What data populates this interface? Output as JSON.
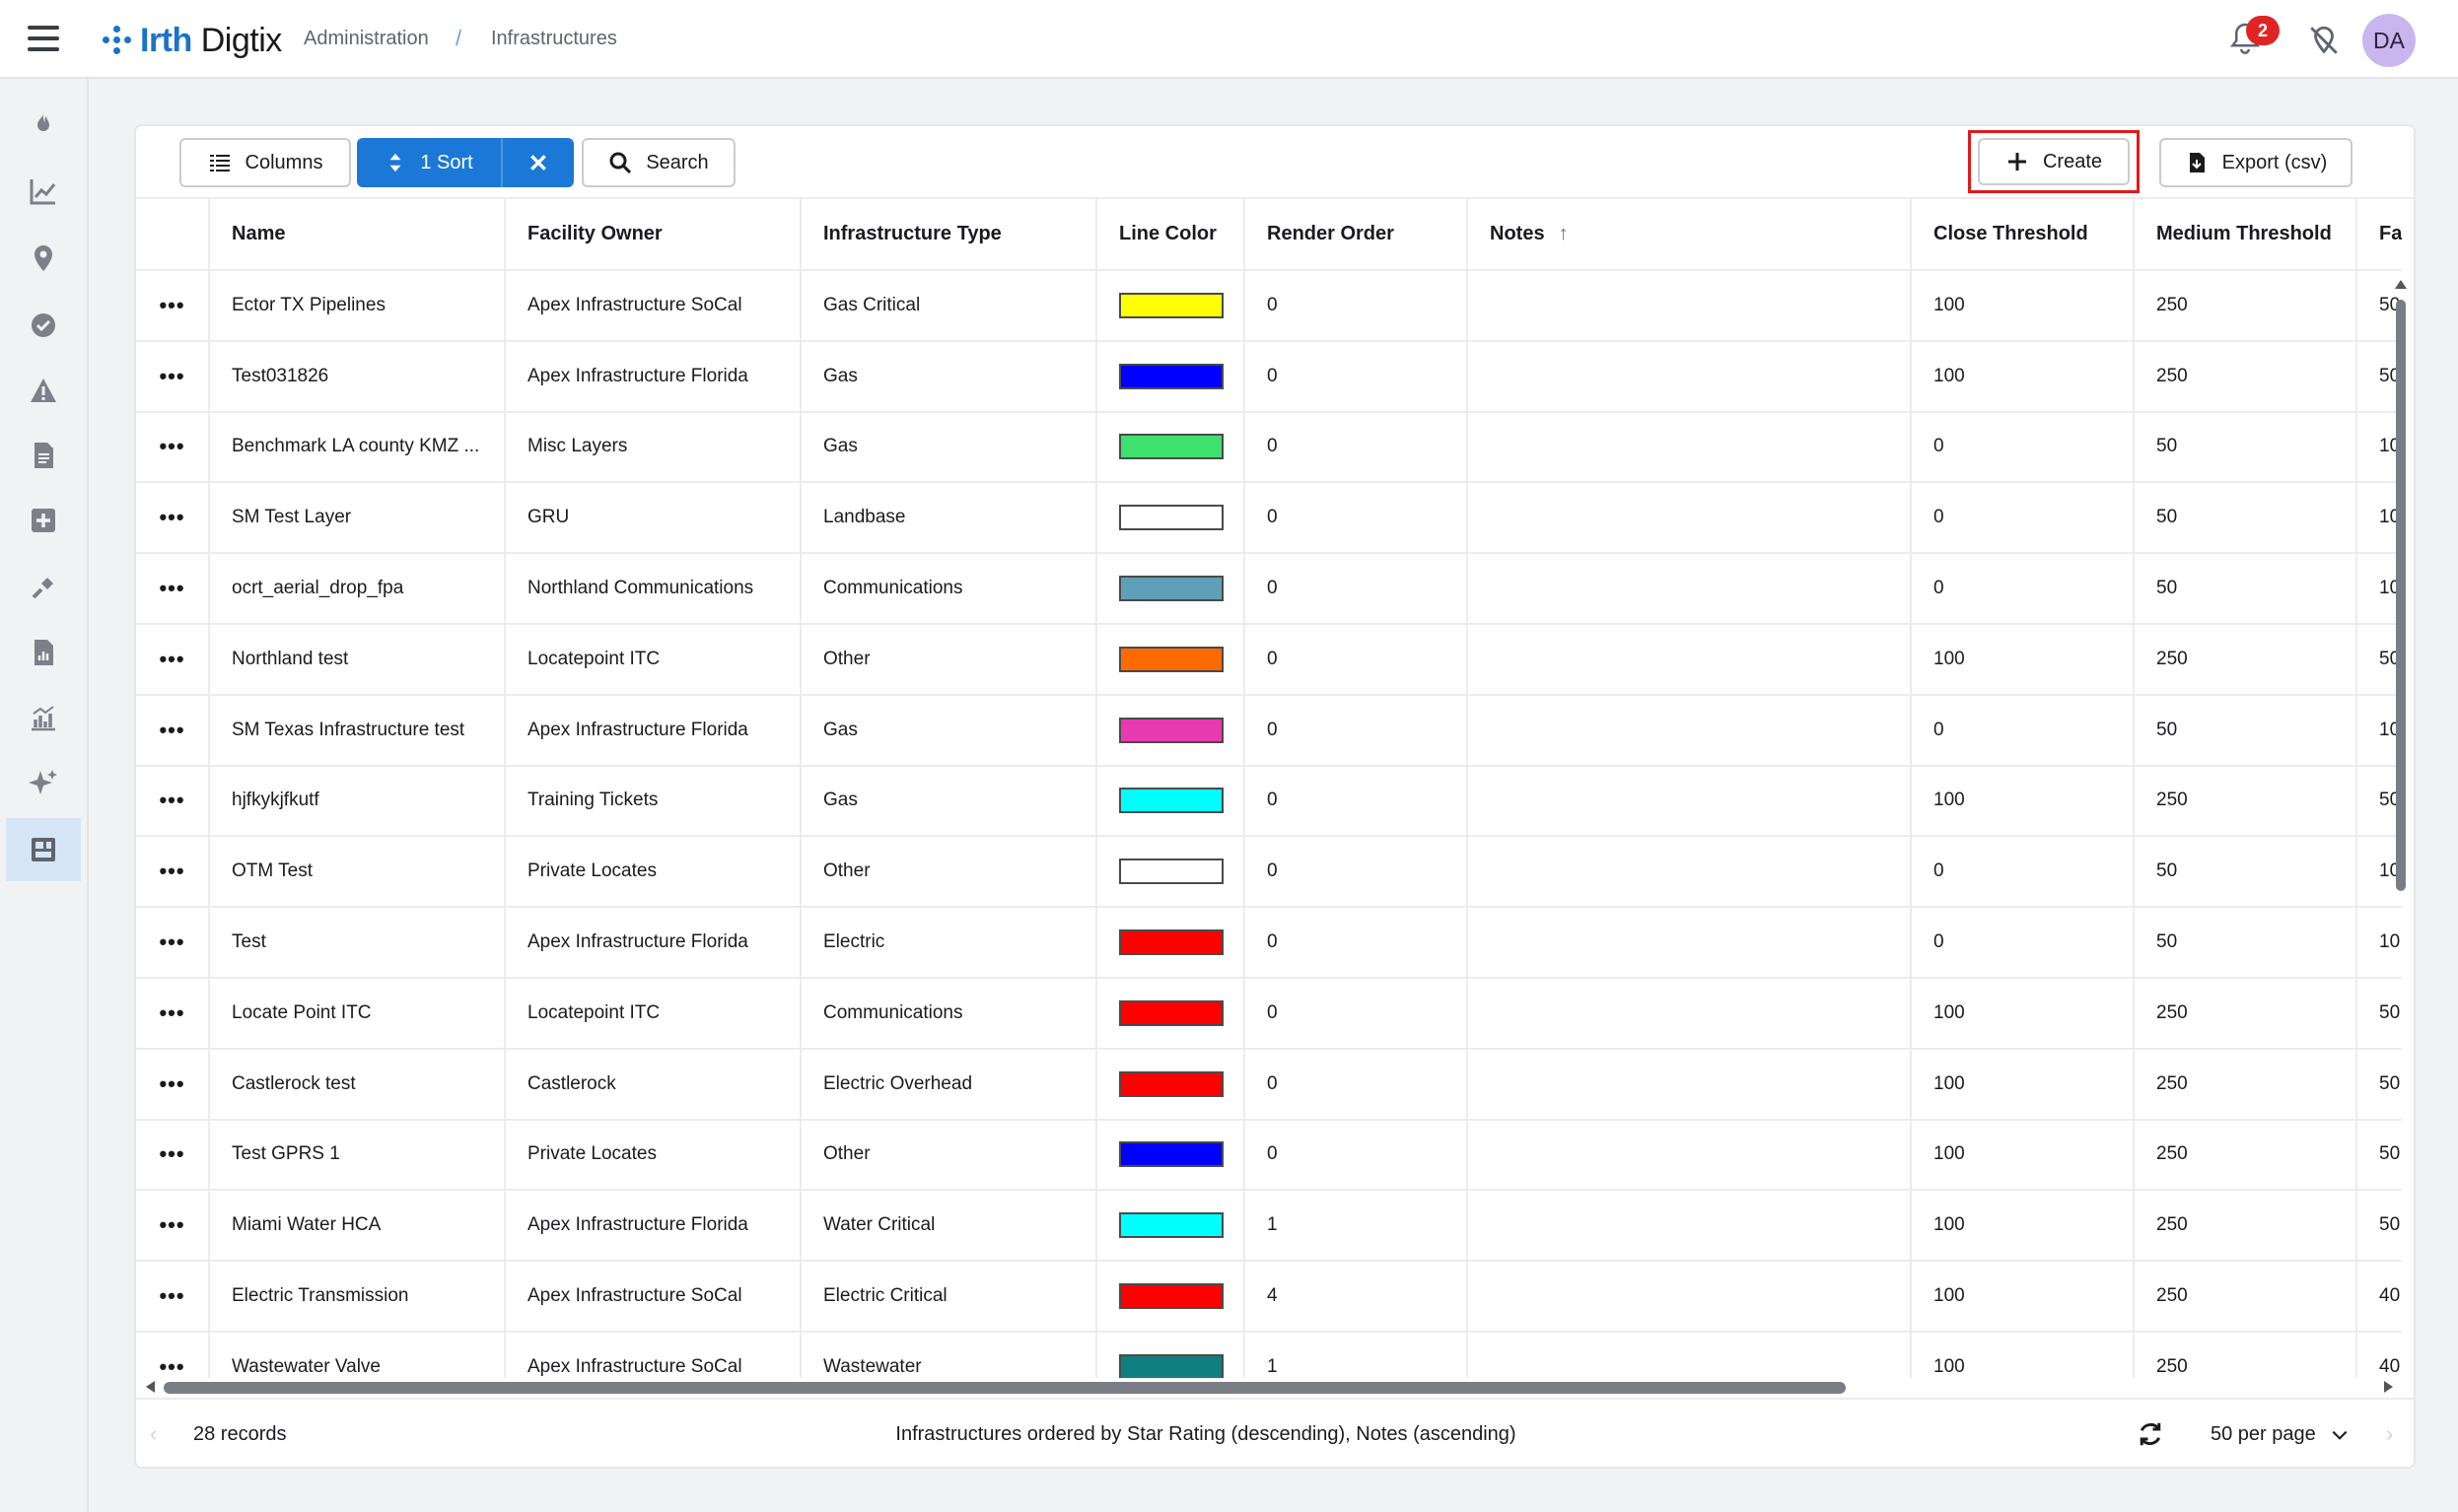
{
  "header": {
    "logo_brand": "Irth",
    "logo_product": "Digtix",
    "breadcrumb": [
      "Administration",
      "/",
      "Infrastructures"
    ],
    "notification_count": "2",
    "avatar_initials": "DA"
  },
  "sidebar": {
    "items": [
      "flame-icon",
      "trend-chart-icon",
      "map-pin-icon",
      "check-circle-icon",
      "warning-icon",
      "document-icon",
      "plus-square-icon",
      "shovel-icon",
      "report-icon",
      "bar-chart-icon",
      "sparkle-icon",
      "admin-icon"
    ],
    "active_index": 11
  },
  "toolbar": {
    "columns_label": "Columns",
    "sort_label": "1 Sort",
    "search_label": "Search",
    "create_label": "Create",
    "export_label": "Export (csv)"
  },
  "table": {
    "columns": [
      "Name",
      "Facility Owner",
      "Infrastructure Type",
      "Line Color",
      "Render Order",
      "Notes",
      "Close Threshold",
      "Medium Threshold",
      "Fa"
    ],
    "rows": [
      {
        "name": "Ector TX Pipelines",
        "owner": "Apex Infrastructure SoCal",
        "type": "Gas Critical",
        "color": "#ffff00",
        "order": "0",
        "notes": "",
        "close": "100",
        "medium": "250",
        "far": "50"
      },
      {
        "name": "Test031826",
        "owner": "Apex Infrastructure Florida",
        "type": "Gas",
        "color": "#0000ff",
        "order": "0",
        "notes": "",
        "close": "100",
        "medium": "250",
        "far": "50"
      },
      {
        "name": "Benchmark LA county KMZ ...",
        "owner": "Misc Layers",
        "type": "Gas",
        "color": "#3ee06e",
        "order": "0",
        "notes": "",
        "close": "0",
        "medium": "50",
        "far": "10"
      },
      {
        "name": "SM Test Layer",
        "owner": "GRU",
        "type": "Landbase",
        "color": "#ffffff",
        "order": "0",
        "notes": "",
        "close": "0",
        "medium": "50",
        "far": "10"
      },
      {
        "name": "ocrt_aerial_drop_fpa",
        "owner": "Northland Communications",
        "type": "Communications",
        "color": "#5f9fb8",
        "order": "0",
        "notes": "",
        "close": "0",
        "medium": "50",
        "far": "10"
      },
      {
        "name": "Northland test",
        "owner": "Locatepoint ITC",
        "type": "Other",
        "color": "#ff6a00",
        "order": "0",
        "notes": "",
        "close": "100",
        "medium": "250",
        "far": "50"
      },
      {
        "name": "SM Texas Infrastructure test",
        "owner": "Apex Infrastructure Florida",
        "type": "Gas",
        "color": "#e83ab0",
        "order": "0",
        "notes": "",
        "close": "0",
        "medium": "50",
        "far": "10"
      },
      {
        "name": "hjfkykjfkutf",
        "owner": "Training Tickets",
        "type": "Gas",
        "color": "#00ffff",
        "order": "0",
        "notes": "",
        "close": "100",
        "medium": "250",
        "far": "50"
      },
      {
        "name": "OTM Test",
        "owner": "Private Locates",
        "type": "Other",
        "color": "#ffffff",
        "order": "0",
        "notes": "",
        "close": "0",
        "medium": "50",
        "far": "10"
      },
      {
        "name": "Test",
        "owner": "Apex Infrastructure Florida",
        "type": "Electric",
        "color": "#ff0000",
        "order": "0",
        "notes": "",
        "close": "0",
        "medium": "50",
        "far": "10"
      },
      {
        "name": "Locate Point ITC",
        "owner": "Locatepoint ITC",
        "type": "Communications",
        "color": "#ff0000",
        "order": "0",
        "notes": "",
        "close": "100",
        "medium": "250",
        "far": "50"
      },
      {
        "name": "Castlerock test",
        "owner": "Castlerock",
        "type": "Electric Overhead",
        "color": "#ff0000",
        "order": "0",
        "notes": "",
        "close": "100",
        "medium": "250",
        "far": "50"
      },
      {
        "name": "Test GPRS 1",
        "owner": "Private Locates",
        "type": "Other",
        "color": "#0000ff",
        "order": "0",
        "notes": "",
        "close": "100",
        "medium": "250",
        "far": "50"
      },
      {
        "name": "Miami Water HCA",
        "owner": "Apex Infrastructure Florida",
        "type": "Water Critical",
        "color": "#00ffff",
        "order": "1",
        "notes": "",
        "close": "100",
        "medium": "250",
        "far": "50"
      },
      {
        "name": "Electric Transmission",
        "owner": "Apex Infrastructure SoCal",
        "type": "Electric Critical",
        "color": "#ff0000",
        "order": "4",
        "notes": "",
        "close": "100",
        "medium": "250",
        "far": "40"
      },
      {
        "name": "Wastewater Valve",
        "owner": "Apex Infrastructure SoCal",
        "type": "Wastewater",
        "color": "#0f7f7f",
        "order": "1",
        "notes": "",
        "close": "100",
        "medium": "250",
        "far": "40"
      }
    ]
  },
  "footer": {
    "records": "28 records",
    "order_text": "Infrastructures ordered by Star Rating (descending), Notes (ascending)",
    "per_page": "50 per page"
  },
  "colors": {
    "accent": "#1c78d6",
    "highlight_frame": "#e01a1a",
    "badge": "#e02424"
  }
}
